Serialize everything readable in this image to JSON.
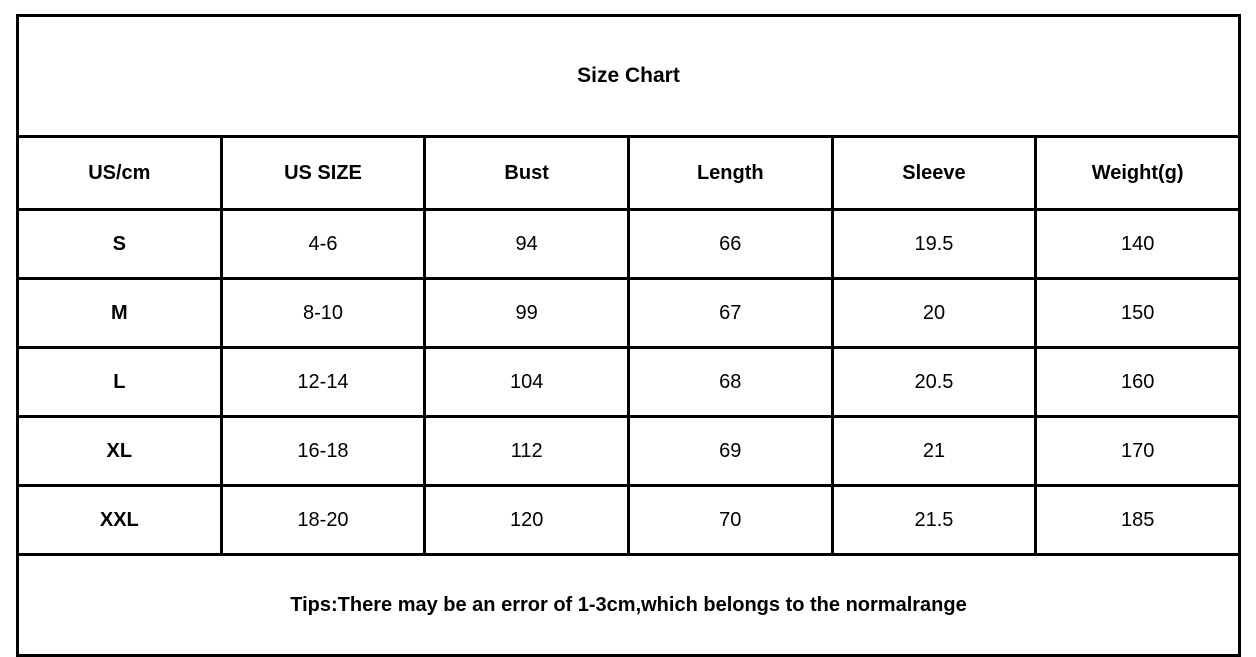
{
  "style": {
    "background": "#ffffff",
    "border_color": "#000000",
    "text_color": "#000000"
  },
  "chart_data": {
    "type": "table",
    "title": "Size Chart",
    "columns": [
      "US/cm",
      "US SIZE",
      "Bust",
      "Length",
      "Sleeve",
      "Weight(g)"
    ],
    "rows": [
      [
        "S",
        "4-6",
        "94",
        "66",
        "19.5",
        "140"
      ],
      [
        "M",
        "8-10",
        "99",
        "67",
        "20",
        "150"
      ],
      [
        "L",
        "12-14",
        "104",
        "68",
        "20.5",
        "160"
      ],
      [
        "XL",
        "16-18",
        "112",
        "69",
        "21",
        "170"
      ],
      [
        "XXL",
        "18-20",
        "120",
        "70",
        "21.5",
        "185"
      ]
    ],
    "note": "Tips:There may be an error of 1-3cm,which belongs to the normalrange"
  }
}
